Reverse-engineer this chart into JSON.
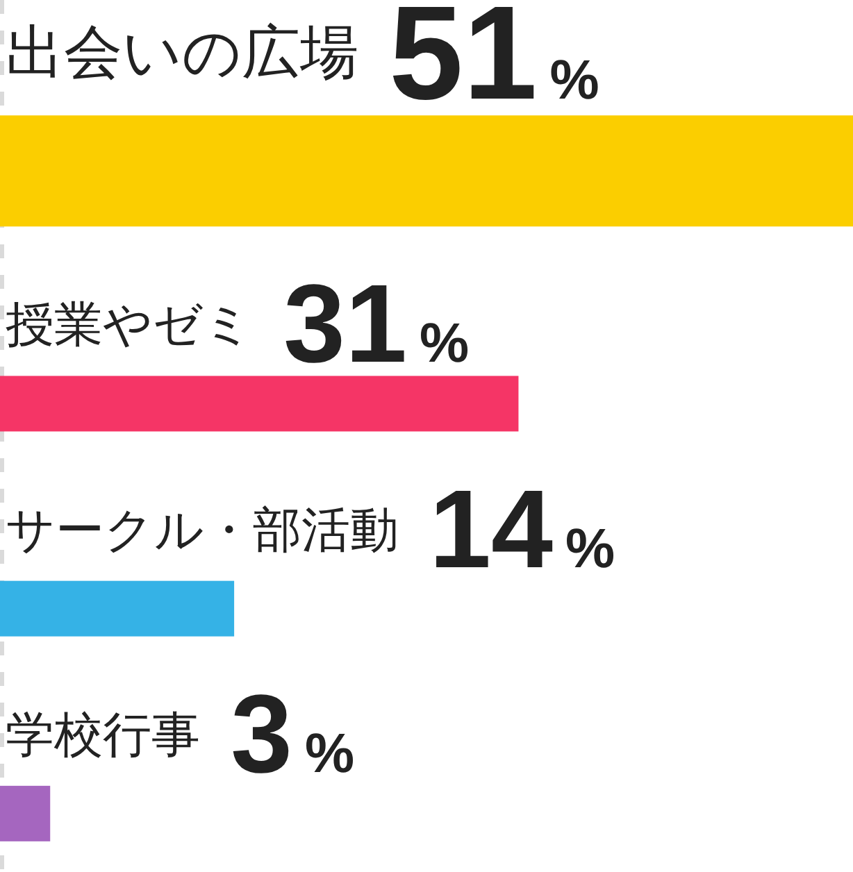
{
  "chart_data": {
    "type": "bar",
    "orientation": "horizontal",
    "categories": [
      "出会いの広場",
      "授業やゼミ",
      "サークル・部活動",
      "学校行事"
    ],
    "values": [
      51,
      31,
      14,
      3
    ],
    "colors": [
      "#fbce00",
      "#f53566",
      "#35b2e6",
      "#a566bf"
    ],
    "value_labels": [
      "51%",
      "31%",
      "14%",
      "3%"
    ]
  }
}
